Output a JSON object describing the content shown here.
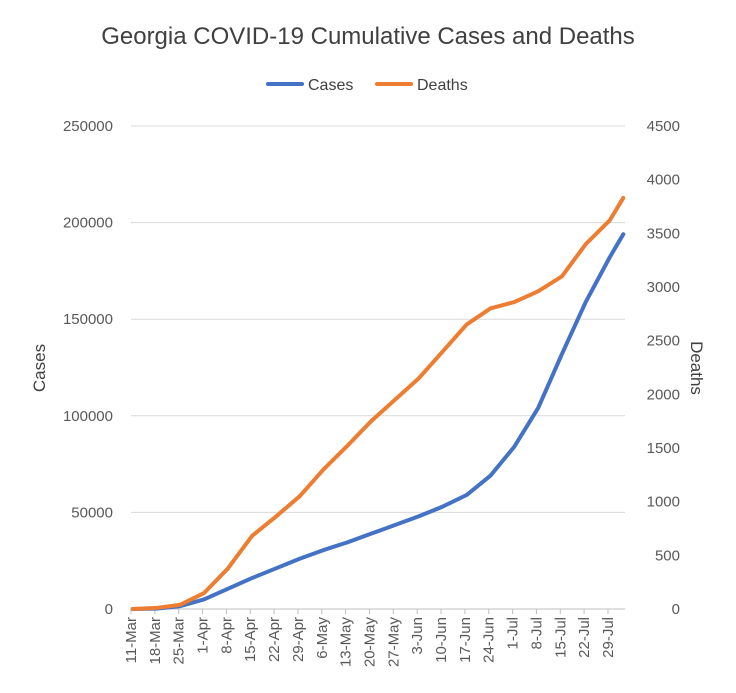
{
  "chart_data": {
    "type": "line",
    "title": "Georgia COVID-19 Cumulative Cases and Deaths",
    "legend": {
      "position": "top"
    },
    "x_ticks": [
      "11-Mar",
      "18-Mar",
      "25-Mar",
      "1-Apr",
      "8-Apr",
      "15-Apr",
      "22-Apr",
      "29-Apr",
      "6-May",
      "13-May",
      "20-May",
      "27-May",
      "3-Jun",
      "10-Jun",
      "17-Jun",
      "24-Jun",
      "1-Jul",
      "8-Jul",
      "15-Jul",
      "22-Jul",
      "29-Jul"
    ],
    "x_range": [
      "11-Mar",
      "2-Aug"
    ],
    "y_left": {
      "label": "Cases",
      "range": [
        0,
        250000
      ],
      "ticks": [
        0,
        50000,
        100000,
        150000,
        200000,
        250000
      ]
    },
    "y_right": {
      "label": "Deaths",
      "range": [
        0,
        4500
      ],
      "ticks": [
        0,
        500,
        1000,
        1500,
        2000,
        2500,
        3000,
        3500,
        4000,
        4500
      ]
    },
    "gridlines": "horizontal",
    "series": [
      {
        "name": "Cases",
        "axis": "left",
        "color": "#4472C4",
        "points": [
          [
            "11-Mar",
            5
          ],
          [
            "18-Mar",
            200
          ],
          [
            "25-Mar",
            1500
          ],
          [
            "1-Apr",
            5000
          ],
          [
            "8-Apr",
            10500
          ],
          [
            "15-Apr",
            16000
          ],
          [
            "22-Apr",
            21000
          ],
          [
            "29-Apr",
            26000
          ],
          [
            "6-May",
            30500
          ],
          [
            "13-May",
            34500
          ],
          [
            "20-May",
            39000
          ],
          [
            "27-May",
            43500
          ],
          [
            "3-Jun",
            48000
          ],
          [
            "10-Jun",
            53000
          ],
          [
            "17-Jun",
            59000
          ],
          [
            "24-Jun",
            69000
          ],
          [
            "1-Jul",
            84000
          ],
          [
            "8-Jul",
            104000
          ],
          [
            "15-Jul",
            132000
          ],
          [
            "22-Jul",
            159000
          ],
          [
            "29-Jul",
            182000
          ],
          [
            "2-Aug",
            194000
          ]
        ]
      },
      {
        "name": "Deaths",
        "axis": "right",
        "color": "#ED7D31",
        "points": [
          [
            "11-Mar",
            0
          ],
          [
            "18-Mar",
            10
          ],
          [
            "25-Mar",
            40
          ],
          [
            "1-Apr",
            150
          ],
          [
            "8-Apr",
            380
          ],
          [
            "15-Apr",
            680
          ],
          [
            "22-Apr",
            860
          ],
          [
            "29-Apr",
            1050
          ],
          [
            "6-May",
            1300
          ],
          [
            "13-May",
            1520
          ],
          [
            "20-May",
            1750
          ],
          [
            "27-May",
            1950
          ],
          [
            "3-Jun",
            2150
          ],
          [
            "10-Jun",
            2400
          ],
          [
            "17-Jun",
            2650
          ],
          [
            "24-Jun",
            2800
          ],
          [
            "1-Jul",
            2860
          ],
          [
            "8-Jul",
            2960
          ],
          [
            "15-Jul",
            3100
          ],
          [
            "22-Jul",
            3400
          ],
          [
            "29-Jul",
            3620
          ],
          [
            "2-Aug",
            3830
          ]
        ]
      }
    ]
  }
}
